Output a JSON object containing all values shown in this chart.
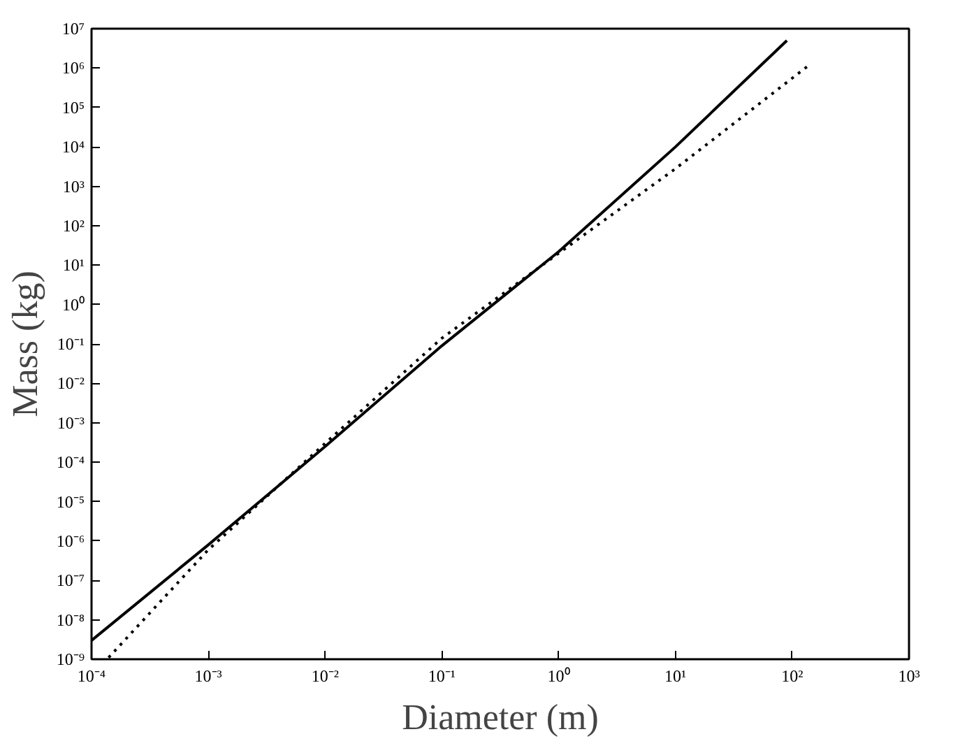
{
  "chart_data": {
    "type": "line",
    "xlabel": "Diameter (m)",
    "ylabel": "Mass (kg)",
    "log": "xy",
    "grid": false,
    "xlim": [
      0.0001,
      1000
    ],
    "ylim": [
      1e-09,
      10000000.0
    ],
    "xticks": [
      {
        "value": 0.0001,
        "label": "10⁻⁴"
      },
      {
        "value": 0.001,
        "label": "10⁻³"
      },
      {
        "value": 0.01,
        "label": "10⁻²"
      },
      {
        "value": 0.1,
        "label": "10⁻¹"
      },
      {
        "value": 1,
        "label": "10⁰"
      },
      {
        "value": 10,
        "label": "10¹"
      },
      {
        "value": 100,
        "label": "10²"
      },
      {
        "value": 1000,
        "label": "10³"
      }
    ],
    "yticks": [
      {
        "value": 1e-09,
        "label": "10⁻⁹"
      },
      {
        "value": 1e-08,
        "label": "10⁻⁸"
      },
      {
        "value": 1e-07,
        "label": "10⁻⁷"
      },
      {
        "value": 1e-06,
        "label": "10⁻⁶"
      },
      {
        "value": 1e-05,
        "label": "10⁻⁵"
      },
      {
        "value": 0.0001,
        "label": "10⁻⁴"
      },
      {
        "value": 0.001,
        "label": "10⁻³"
      },
      {
        "value": 0.01,
        "label": "10⁻²"
      },
      {
        "value": 0.1,
        "label": "10⁻¹"
      },
      {
        "value": 1,
        "label": "10⁰"
      },
      {
        "value": 10,
        "label": "10¹"
      },
      {
        "value": 100,
        "label": "10²"
      },
      {
        "value": 1000,
        "label": "10³"
      },
      {
        "value": 10000,
        "label": "10⁴"
      },
      {
        "value": 100000,
        "label": "10⁵"
      },
      {
        "value": 1000000,
        "label": "10⁶"
      },
      {
        "value": 10000000,
        "label": "10⁷"
      }
    ],
    "series": [
      {
        "color": "#000000",
        "line_style": "solid",
        "x": [
          0.0001,
          0.001,
          0.01,
          0.1,
          1,
          10,
          90
        ],
        "values": [
          3e-09,
          8e-07,
          0.00025,
          0.09,
          22,
          10000,
          5000000
        ]
      },
      {
        "color": "#000000",
        "line_style": "dotted",
        "x": [
          0.00014,
          0.001,
          0.01,
          0.1,
          0.3,
          1,
          10,
          140
        ],
        "values": [
          1.1e-09,
          6e-07,
          0.0003,
          0.14,
          1.5,
          20,
          2800,
          1200000
        ]
      }
    ]
  }
}
